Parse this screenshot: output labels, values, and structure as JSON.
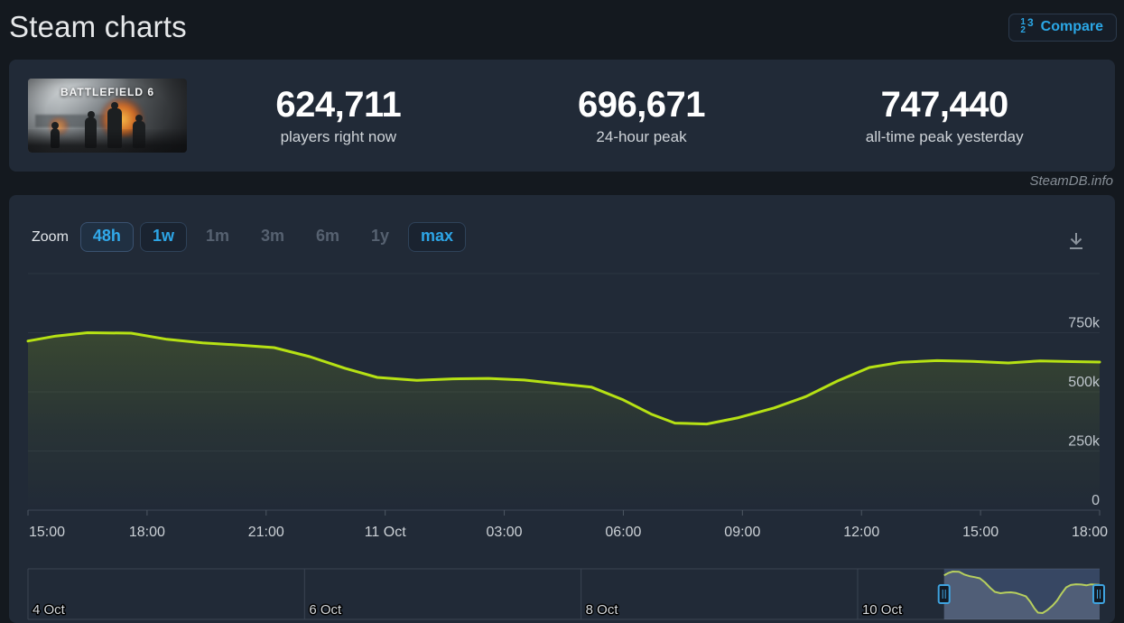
{
  "header": {
    "title": "Steam charts",
    "compare_label": "Compare",
    "compare_icon_digits": [
      "1",
      "3",
      "2"
    ],
    "compare_icon": "numbered-list-123"
  },
  "stats": {
    "game_title": "BATTLEFIELD 6",
    "items": [
      {
        "value": "624,711",
        "label": "players right now"
      },
      {
        "value": "696,671",
        "label": "24-hour peak"
      },
      {
        "value": "747,440",
        "label": "all-time peak yesterday"
      }
    ]
  },
  "watermark": "SteamDB.info",
  "toolbar": {
    "zoom_label": "Zoom",
    "download_icon": "download-arrow",
    "buttons": [
      {
        "label": "48h",
        "state": "active"
      },
      {
        "label": "1w",
        "state": "enabled"
      },
      {
        "label": "1m",
        "state": "disabled"
      },
      {
        "label": "3m",
        "state": "disabled"
      },
      {
        "label": "6m",
        "state": "disabled"
      },
      {
        "label": "1y",
        "state": "disabled"
      },
      {
        "label": "max",
        "state": "enabled"
      }
    ]
  },
  "chart_data": {
    "type": "line",
    "title": "Battlefield 6 concurrent players",
    "line_color": "#b6e114",
    "x_axis": {
      "start": "10 Oct 15:00",
      "end": "11 Oct 18:00",
      "hours_span": 27,
      "tick_labels": [
        "15:00",
        "18:00",
        "21:00",
        "11 Oct",
        "03:00",
        "06:00",
        "09:00",
        "12:00",
        "15:00",
        "18:00"
      ]
    },
    "y_axis": {
      "ylim": [
        0,
        1000000
      ],
      "gridline_values": [
        1000000,
        750000,
        500000,
        250000
      ],
      "ticks": [
        {
          "value": 750000,
          "label": "750k"
        },
        {
          "value": 500000,
          "label": "500k"
        },
        {
          "value": 250000,
          "label": "250k"
        },
        {
          "value": 0,
          "label": "0"
        }
      ]
    },
    "series": [
      {
        "name": "Players",
        "points": [
          [
            0,
            715000
          ],
          [
            0.7,
            736000
          ],
          [
            1.5,
            750000
          ],
          [
            2.6,
            748000
          ],
          [
            3.5,
            722000
          ],
          [
            4.4,
            707000
          ],
          [
            5.3,
            698000
          ],
          [
            6.2,
            687000
          ],
          [
            7.1,
            649000
          ],
          [
            8.0,
            599000
          ],
          [
            8.8,
            561000
          ],
          [
            9.8,
            549000
          ],
          [
            10.7,
            555000
          ],
          [
            11.6,
            557000
          ],
          [
            12.5,
            550000
          ],
          [
            13.4,
            534000
          ],
          [
            14.2,
            520000
          ],
          [
            15.0,
            466000
          ],
          [
            15.7,
            406000
          ],
          [
            16.3,
            368000
          ],
          [
            17.1,
            364000
          ],
          [
            17.9,
            391000
          ],
          [
            18.8,
            432000
          ],
          [
            19.6,
            480000
          ],
          [
            20.4,
            546000
          ],
          [
            21.2,
            603000
          ],
          [
            22.0,
            625000
          ],
          [
            22.9,
            632000
          ],
          [
            23.8,
            629000
          ],
          [
            24.7,
            622000
          ],
          [
            25.5,
            631000
          ],
          [
            26.3,
            628000
          ],
          [
            27,
            626000
          ]
        ]
      }
    ],
    "navigator": {
      "total_days": 7.75,
      "window_start_day": 6.625,
      "window_end_day": 7.75,
      "day_labels": [
        {
          "day": 0,
          "label": "4 Oct"
        },
        {
          "day": 2,
          "label": "6 Oct"
        },
        {
          "day": 4,
          "label": "8 Oct"
        },
        {
          "day": 6,
          "label": "10 Oct"
        }
      ],
      "scale_vmin": 364000,
      "scale_vmax": 750000
    },
    "legend_position": "none",
    "grid": true
  }
}
